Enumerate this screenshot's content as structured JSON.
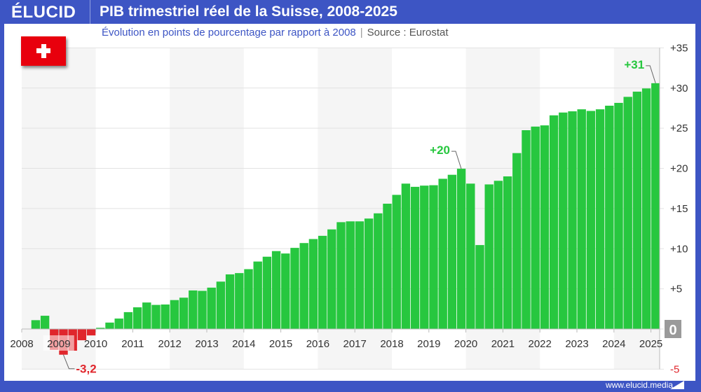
{
  "header": {
    "logo": "ÉLUCID",
    "title": "PIB trimestriel réel de la Suisse, 2008-2025"
  },
  "subtitle": {
    "text": "Évolution en points de pourcentage par rapport à 2008",
    "separator": "|",
    "source": "Source : Eurostat"
  },
  "flag_icon": "switzerland-flag",
  "footer": {
    "url": "www.elucid.media"
  },
  "colors": {
    "brand": "#3d55c4",
    "positive": "#27c73f",
    "negative": "#e0262c",
    "positive_label": "#27c73f",
    "negative_label": "#e0262c"
  },
  "chart_data": {
    "type": "bar",
    "title": "PIB trimestriel réel de la Suisse, 2008-2025",
    "subtitle": "Évolution en points de pourcentage par rapport à 2008",
    "frequency": "quarterly",
    "start": "2008-Q1",
    "end": "2025-Q1",
    "values": [
      0,
      1.1,
      1.65,
      -2.6,
      -3.2,
      -2.7,
      -1.4,
      -0.8,
      0.15,
      0.8,
      1.3,
      2.1,
      2.7,
      3.3,
      3.0,
      3.05,
      3.6,
      3.9,
      4.8,
      4.75,
      5.15,
      5.9,
      6.8,
      6.96,
      7.45,
      8.4,
      9.0,
      9.7,
      9.4,
      10.1,
      10.7,
      11.2,
      11.6,
      12.4,
      13.3,
      13.4,
      13.4,
      13.75,
      14.4,
      15.6,
      16.7,
      18.1,
      17.7,
      17.85,
      17.9,
      18.7,
      19.2,
      19.95,
      18.1,
      10.45,
      18.0,
      18.45,
      19.0,
      21.9,
      24.75,
      25.2,
      25.35,
      26.6,
      26.95,
      27.1,
      27.35,
      27.15,
      27.35,
      27.8,
      28.15,
      28.9,
      29.55,
      29.95,
      30.6
    ],
    "x_tick_labels": [
      "2008",
      "2009",
      "2010",
      "2011",
      "2012",
      "2013",
      "2014",
      "2015",
      "2016",
      "2017",
      "2018",
      "2019",
      "2020",
      "2021",
      "2022",
      "2023",
      "2024",
      "2025"
    ],
    "y_tick_labels": [
      "-5",
      "0",
      "+5",
      "+10",
      "+15",
      "+20",
      "+25",
      "+30",
      "+35"
    ],
    "y_ticks": [
      -5,
      0,
      5,
      10,
      15,
      20,
      25,
      30,
      35
    ],
    "ylim": [
      -5,
      35
    ],
    "y_axis_position": "right",
    "grid": true,
    "annotations": [
      {
        "index": 4,
        "label": "-3,2"
      },
      {
        "index": 47,
        "label": "+20"
      },
      {
        "index": 68,
        "label": "+31"
      }
    ]
  }
}
